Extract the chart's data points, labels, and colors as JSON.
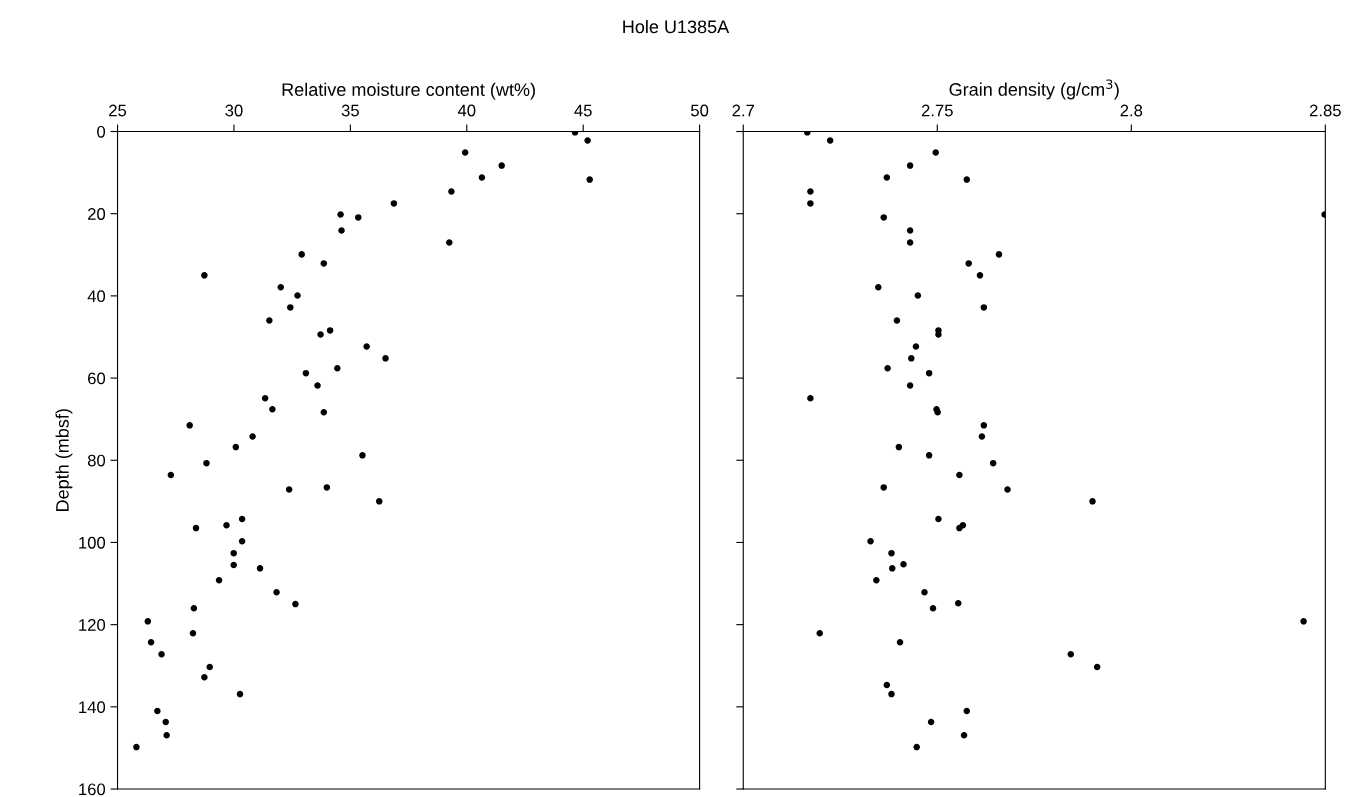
{
  "chart_data": [
    {
      "type": "scatter",
      "title": "Hole U1385A",
      "xlabel": "Relative moisture content (wt%)",
      "ylabel": "Depth (mbsf)",
      "xlim": [
        25,
        50
      ],
      "xticks": [
        25,
        30,
        35,
        40,
        45,
        50
      ],
      "ylim": [
        160,
        0
      ],
      "yticks": [
        0,
        20,
        40,
        60,
        80,
        100,
        120,
        140,
        160
      ],
      "marker": "circle",
      "grid": false,
      "legend": false,
      "series": [
        {
          "color": "#000000",
          "x": [
            44.65,
            45.19,
            39.93,
            41.5,
            40.65,
            45.28,
            39.34,
            36.87,
            34.58,
            35.34,
            34.62,
            39.25,
            32.91,
            33.86,
            28.73,
            32.01,
            32.73,
            32.42,
            31.52,
            34.13,
            33.72,
            35.7,
            36.51,
            34.44,
            33.09,
            33.59,
            31.34,
            31.65,
            33.86,
            28.1,
            30.8,
            30.08,
            35.52,
            28.82,
            27.29,
            33.99,
            32.37,
            36.24,
            30.35,
            29.68,
            28.37,
            30.35,
            29.99,
            29.99,
            31.12,
            29.36,
            31.83,
            32.64,
            28.28,
            26.3,
            28.24,
            26.44,
            26.89,
            28.96,
            28.73,
            30.26,
            26.71,
            27.07,
            27.11,
            25.81
          ],
          "values": [
            0.2,
            2.2,
            5.1,
            8.3,
            11.2,
            11.7,
            14.6,
            17.5,
            20.2,
            20.9,
            24.1,
            27.0,
            29.9,
            32.1,
            35.0,
            37.9,
            39.9,
            42.8,
            46.0,
            48.4,
            49.4,
            52.3,
            55.2,
            57.6,
            58.8,
            61.8,
            64.9,
            67.6,
            68.3,
            71.5,
            74.2,
            76.8,
            78.8,
            80.7,
            83.6,
            86.6,
            87.1,
            90.0,
            94.3,
            95.8,
            96.5,
            99.7,
            102.6,
            105.5,
            106.3,
            109.2,
            112.1,
            115.0,
            116.0,
            119.2,
            122.1,
            124.3,
            127.2,
            130.3,
            132.8,
            136.9,
            141.0,
            143.7,
            146.9,
            149.8
          ]
        }
      ]
    },
    {
      "type": "scatter",
      "xlabel": "Grain density (g/cm$^{3}$)",
      "xlim": [
        2.7,
        2.85
      ],
      "xticks": [
        2.7,
        2.75,
        2.8,
        2.85
      ],
      "ylim": [
        160,
        0
      ],
      "yticks": [
        0,
        20,
        40,
        60,
        80,
        100,
        120,
        140,
        160
      ],
      "tick_labels": "x",
      "marker": "circle",
      "grid": false,
      "legend": false,
      "series": [
        {
          "color": "#000000",
          "x": [
            2.7165,
            2.7224,
            2.7496,
            2.743,
            2.737,
            2.7576,
            2.7173,
            2.7173,
            2.8498,
            2.7362,
            2.743,
            2.743,
            2.7659,
            2.7581,
            2.761,
            2.7348,
            2.745,
            2.762,
            2.7396,
            2.7503,
            2.7503,
            2.7445,
            2.7433,
            2.7372,
            2.7479,
            2.743,
            2.7173,
            2.7498,
            2.7501,
            2.762,
            2.7615,
            2.7401,
            2.7479,
            2.7644,
            2.7557,
            2.7681,
            2.7362,
            2.79,
            2.7503,
            2.7566,
            2.7557,
            2.7328,
            2.7382,
            2.7413,
            2.7384,
            2.7343,
            2.7467,
            2.7554,
            2.7489,
            2.8444,
            2.7197,
            2.7404,
            2.7844,
            2.7912,
            2.737,
            2.7382,
            2.7576,
            2.7484,
            2.7569,
            2.7447
          ],
          "values": [
            0.2,
            2.2,
            5.1,
            8.3,
            11.2,
            11.7,
            14.6,
            17.5,
            20.2,
            20.9,
            24.1,
            27.0,
            29.9,
            32.1,
            35.0,
            37.9,
            39.9,
            42.8,
            46.0,
            48.4,
            49.4,
            52.3,
            55.2,
            57.6,
            58.8,
            61.8,
            64.9,
            67.6,
            68.3,
            71.5,
            74.2,
            76.8,
            78.8,
            80.7,
            83.6,
            87.1,
            86.6,
            90.0,
            94.3,
            95.8,
            96.5,
            99.7,
            102.6,
            105.3,
            106.3,
            109.2,
            112.1,
            114.8,
            116.0,
            119.2,
            122.1,
            124.3,
            127.2,
            130.3,
            134.7,
            136.9,
            141.0,
            143.7,
            146.9,
            149.8
          ]
        }
      ]
    }
  ]
}
